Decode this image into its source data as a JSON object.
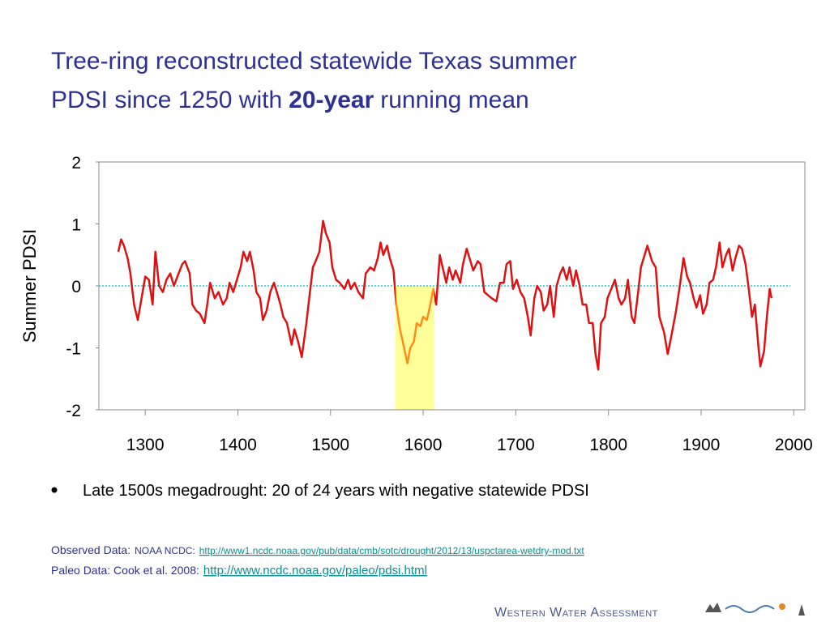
{
  "chart_data": {
    "type": "line",
    "title_line1": "Tree-ring reconstructed statewide Texas summer",
    "title_line2_start": "PDSI since 1250 with",
    "title_line2_bold": "20-year",
    "title_line2_end": "running mean",
    "y_label": "Summer PDSI",
    "xlim": [
      1250,
      2012
    ],
    "xticks": [
      1300,
      1400,
      1500,
      1600,
      1700,
      1800,
      1900,
      2000
    ],
    "ylim": [
      -2,
      2
    ],
    "yticks": [
      -2,
      -1,
      0,
      1,
      2
    ],
    "reference_line": {
      "value": 0,
      "color": "#22ccdd"
    },
    "highlight": {
      "xlim": [
        1570,
        1612
      ],
      "color": "#ffff99",
      "line_color": "#ff8c1a"
    },
    "series": [
      {
        "name": "20-year running mean",
        "color": "#dd1111",
        "x": [
          1271,
          1274,
          1277,
          1281,
          1284,
          1288,
          1292,
          1296,
          1300,
          1304,
          1308,
          1311,
          1315,
          1319,
          1323,
          1327,
          1331,
          1336,
          1340,
          1343,
          1348,
          1351,
          1355,
          1359,
          1364,
          1367,
          1370,
          1375,
          1379,
          1384,
          1388,
          1391,
          1395,
          1399,
          1403,
          1406,
          1410,
          1413,
          1417,
          1420,
          1424,
          1427,
          1431,
          1435,
          1439,
          1442,
          1446,
          1449,
          1453,
          1458,
          1461,
          1465,
          1469,
          1474,
          1477,
          1481,
          1484,
          1488,
          1492,
          1495,
          1499,
          1502,
          1506,
          1510,
          1515,
          1519,
          1522,
          1526,
          1530,
          1535,
          1538,
          1543,
          1547,
          1551,
          1554,
          1557,
          1561,
          1564,
          1568,
          1571,
          1575,
          1578,
          1583,
          1586,
          1590,
          1593,
          1597,
          1600,
          1604,
          1607,
          1611,
          1614,
          1618,
          1621,
          1625,
          1628,
          1632,
          1635,
          1640,
          1643,
          1647,
          1651,
          1654,
          1659,
          1662,
          1666,
          1670,
          1674,
          1679,
          1683,
          1687,
          1690,
          1694,
          1697,
          1701,
          1705,
          1709,
          1713,
          1716,
          1720,
          1723,
          1727,
          1730,
          1734,
          1737,
          1741,
          1744,
          1748,
          1751,
          1755,
          1758,
          1762,
          1765,
          1769,
          1772,
          1776,
          1779,
          1783,
          1786,
          1789,
          1792,
          1796,
          1799,
          1803,
          1807,
          1811,
          1814,
          1818,
          1821,
          1825,
          1828,
          1832,
          1835,
          1839,
          1842,
          1847,
          1851,
          1855,
          1860,
          1864,
          1868,
          1873,
          1877,
          1881,
          1885,
          1888,
          1892,
          1895,
          1899,
          1902,
          1906,
          1909,
          1913,
          1916,
          1920,
          1923,
          1927,
          1930,
          1934,
          1937,
          1941,
          1944,
          1948,
          1951,
          1955,
          1958,
          1962,
          1964,
          1968,
          1971,
          1974,
          1976
        ],
        "values": [
          0.55,
          0.75,
          0.65,
          0.45,
          0.2,
          -0.3,
          -0.55,
          -0.2,
          0.15,
          0.1,
          -0.3,
          0.55,
          0.0,
          -0.1,
          0.1,
          0.2,
          0.0,
          0.2,
          0.35,
          0.4,
          0.2,
          -0.3,
          -0.4,
          -0.45,
          -0.6,
          -0.3,
          0.05,
          -0.2,
          -0.1,
          -0.3,
          -0.2,
          0.05,
          -0.1,
          0.1,
          0.3,
          0.55,
          0.4,
          0.55,
          0.25,
          -0.1,
          -0.2,
          -0.55,
          -0.4,
          -0.1,
          0.05,
          -0.1,
          -0.3,
          -0.5,
          -0.6,
          -0.95,
          -0.7,
          -0.9,
          -1.15,
          -0.6,
          -0.2,
          0.3,
          0.4,
          0.55,
          1.05,
          0.85,
          0.7,
          0.3,
          0.1,
          0.05,
          -0.05,
          0.1,
          -0.05,
          0.05,
          -0.1,
          -0.2,
          0.2,
          0.3,
          0.25,
          0.45,
          0.7,
          0.5,
          0.65,
          0.45,
          0.25,
          -0.3,
          -0.7,
          -0.9,
          -1.25,
          -1.0,
          -0.9,
          -0.6,
          -0.65,
          -0.5,
          -0.55,
          -0.35,
          -0.05,
          -0.3,
          0.5,
          0.3,
          0.05,
          0.3,
          0.1,
          0.25,
          0.05,
          0.35,
          0.6,
          0.4,
          0.25,
          0.4,
          0.35,
          -0.1,
          -0.15,
          -0.2,
          -0.25,
          0.05,
          0.05,
          0.35,
          0.4,
          -0.05,
          0.1,
          -0.1,
          -0.2,
          -0.5,
          -0.8,
          -0.2,
          0.0,
          -0.1,
          -0.4,
          -0.3,
          0.0,
          -0.5,
          0.0,
          0.2,
          0.3,
          0.1,
          0.3,
          0.0,
          0.25,
          0.0,
          -0.3,
          -0.3,
          -0.6,
          -0.6,
          -1.1,
          -1.35,
          -0.6,
          -0.5,
          -0.2,
          -0.05,
          0.1,
          -0.2,
          -0.3,
          -0.2,
          0.1,
          -0.5,
          -0.6,
          -0.1,
          0.3,
          0.5,
          0.65,
          0.4,
          0.3,
          -0.5,
          -0.75,
          -1.1,
          -0.8,
          -0.4,
          0.0,
          0.45,
          0.15,
          0.05,
          -0.2,
          -0.35,
          -0.15,
          -0.45,
          -0.3,
          0.05,
          0.1,
          0.3,
          0.7,
          0.3,
          0.5,
          0.6,
          0.25,
          0.45,
          0.65,
          0.6,
          0.35,
          0.0,
          -0.5,
          -0.3,
          -1.0,
          -1.3,
          -1.05,
          -0.5,
          -0.05,
          -0.2
        ]
      }
    ]
  },
  "bullet": "Late 1500s megadrought: 20 of 24 years with negative statewide PDSI",
  "sources": {
    "observed_label": "Observed Data:",
    "observed_org": "NOAA NCDC:",
    "observed_url": "http://www1.ncdc.noaa.gov/pub/data/cmb/sotc/drought/2012/13/uspctarea-wetdry-mod.txt",
    "paleo_label": "Paleo Data: Cook et al. 2008:",
    "paleo_url": "http://www.ncdc.noaa.gov/paleo/pdsi.html"
  },
  "logo": "Western Water Assessment"
}
